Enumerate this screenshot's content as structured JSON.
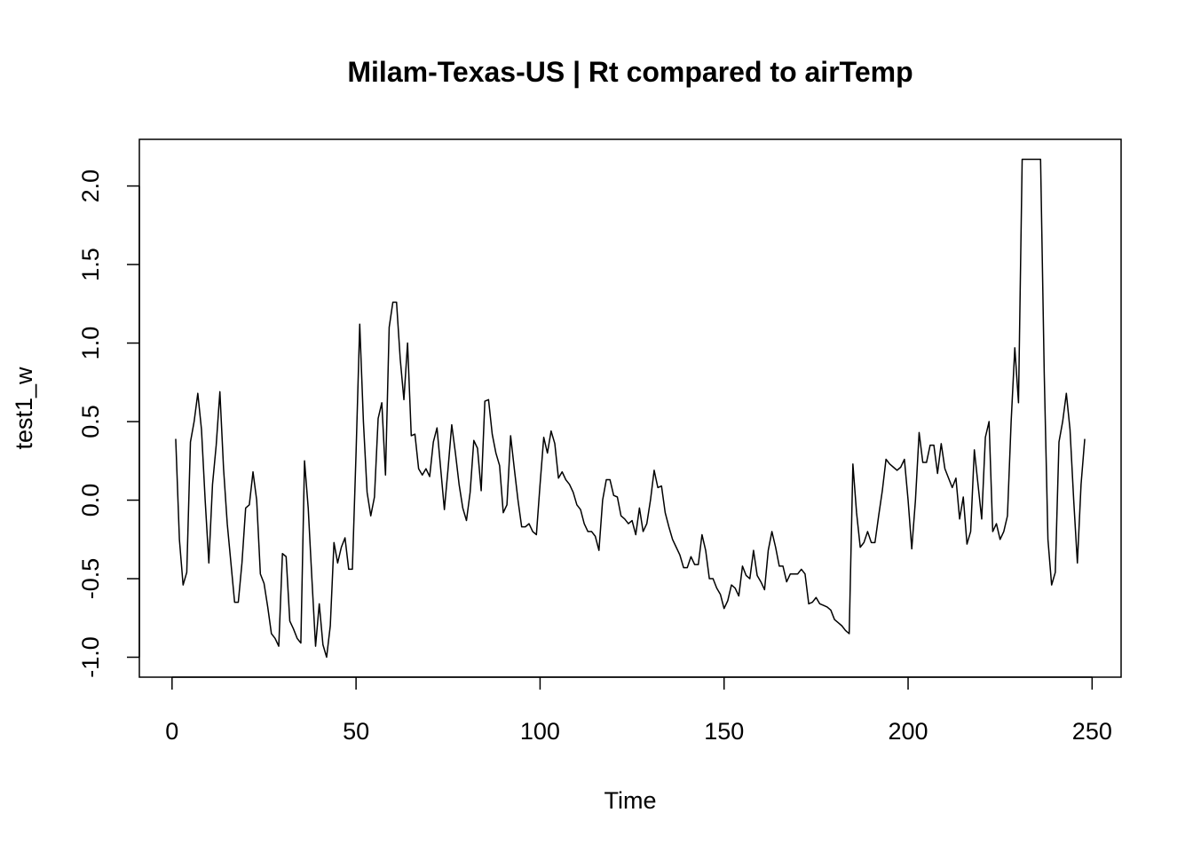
{
  "chart_data": {
    "type": "line",
    "title": "Milam-Texas-US | Rt compared to airTemp",
    "x_label": "Time",
    "y_label": "test1_w",
    "color": "#000000",
    "xlim": [
      -8.88,
      257.88
    ],
    "ylim": [
      -1.127,
      2.297
    ],
    "xticks": [
      0,
      50,
      100,
      150,
      200,
      250
    ],
    "yticks": [
      {
        "value": -1,
        "label": "-1.0"
      },
      -0.5,
      {
        "value": 0,
        "label": "0.0"
      },
      0.5,
      {
        "value": 1,
        "label": "1.0"
      },
      1.5,
      {
        "value": 2,
        "label": "2.0"
      }
    ],
    "x": [
      1,
      2,
      3,
      4,
      5,
      6,
      7,
      8,
      9,
      10,
      11,
      12,
      13,
      14,
      15,
      16,
      17,
      18,
      19,
      20,
      21,
      22,
      23,
      24,
      25,
      26,
      27,
      28,
      29,
      30,
      31,
      32,
      33,
      34,
      35,
      36,
      37,
      38,
      39,
      40,
      41,
      42,
      43,
      44,
      45,
      46,
      47,
      48,
      49,
      50,
      51,
      52,
      53,
      54,
      55,
      56,
      57,
      58,
      59,
      60,
      61,
      62,
      63,
      64,
      65,
      66,
      67,
      68,
      69,
      70,
      71,
      72,
      73,
      74,
      75,
      76,
      77,
      78,
      79,
      80,
      81,
      82,
      83,
      84,
      85,
      86,
      87,
      88,
      89,
      90,
      91,
      92,
      93,
      94,
      95,
      96,
      97,
      98,
      99,
      100,
      101,
      102,
      103,
      104,
      105,
      106,
      107,
      108,
      109,
      110,
      111,
      112,
      113,
      114,
      115,
      116,
      117,
      118,
      119,
      120,
      121,
      122,
      123,
      124,
      125,
      126,
      127,
      128,
      129,
      130,
      131,
      132,
      133,
      134,
      135,
      136,
      137,
      138,
      139,
      140,
      141,
      142,
      143,
      144,
      145,
      146,
      147,
      148,
      149,
      150,
      151,
      152,
      153,
      154,
      155,
      156,
      157,
      158,
      159,
      160,
      161,
      162,
      163,
      164,
      165,
      166,
      167,
      168,
      169,
      170,
      171,
      172,
      173,
      174,
      175,
      176,
      177,
      178,
      179,
      180,
      181,
      182,
      183,
      184,
      185,
      186,
      187,
      188,
      189,
      190,
      191,
      192,
      193,
      194,
      195,
      196,
      197,
      198,
      199,
      200,
      201,
      202,
      203,
      204,
      205,
      206,
      207,
      208,
      209,
      210,
      211,
      212,
      213,
      214,
      215,
      216,
      217,
      218,
      219,
      220,
      221,
      222,
      223,
      224,
      225,
      226,
      227,
      228,
      229,
      230,
      231,
      232,
      233,
      234,
      235,
      236,
      237,
      238,
      239,
      240,
      241,
      242,
      243,
      244,
      245,
      246,
      247,
      248
    ],
    "values": [
      0.39,
      -0.25,
      -0.54,
      -0.46,
      0.37,
      0.5,
      0.68,
      0.45,
      0.0,
      -0.4,
      0.1,
      0.35,
      0.69,
      0.2,
      -0.15,
      -0.4,
      -0.65,
      -0.65,
      -0.4,
      -0.05,
      -0.03,
      0.18,
      0.0,
      -0.47,
      -0.53,
      -0.68,
      -0.85,
      -0.88,
      -0.93,
      -0.34,
      -0.36,
      -0.77,
      -0.82,
      -0.88,
      -0.91,
      0.25,
      -0.05,
      -0.5,
      -0.93,
      -0.66,
      -0.92,
      -1.0,
      -0.8,
      -0.27,
      -0.4,
      -0.3,
      -0.24,
      -0.44,
      -0.44,
      0.3,
      1.12,
      0.5,
      0.05,
      -0.1,
      0.02,
      0.52,
      0.62,
      0.16,
      1.1,
      1.26,
      1.26,
      0.9,
      0.64,
      1.0,
      0.41,
      0.42,
      0.2,
      0.16,
      0.2,
      0.15,
      0.37,
      0.46,
      0.2,
      -0.06,
      0.2,
      0.48,
      0.3,
      0.1,
      -0.05,
      -0.13,
      0.05,
      0.38,
      0.33,
      0.06,
      0.63,
      0.64,
      0.42,
      0.3,
      0.22,
      -0.08,
      -0.03,
      0.41,
      0.2,
      0.0,
      -0.17,
      -0.17,
      -0.15,
      -0.2,
      -0.22,
      0.1,
      0.4,
      0.3,
      0.44,
      0.36,
      0.14,
      0.18,
      0.13,
      0.1,
      0.05,
      -0.03,
      -0.06,
      -0.15,
      -0.2,
      -0.2,
      -0.23,
      -0.32,
      0.0,
      0.13,
      0.13,
      0.03,
      0.02,
      -0.1,
      -0.12,
      -0.15,
      -0.13,
      -0.22,
      -0.05,
      -0.2,
      -0.15,
      0.0,
      0.19,
      0.08,
      0.09,
      -0.08,
      -0.17,
      -0.25,
      -0.3,
      -0.35,
      -0.43,
      -0.43,
      -0.36,
      -0.41,
      -0.41,
      -0.22,
      -0.32,
      -0.5,
      -0.5,
      -0.56,
      -0.6,
      -0.69,
      -0.64,
      -0.54,
      -0.56,
      -0.61,
      -0.42,
      -0.48,
      -0.5,
      -0.32,
      -0.48,
      -0.52,
      -0.57,
      -0.32,
      -0.2,
      -0.3,
      -0.42,
      -0.42,
      -0.52,
      -0.47,
      -0.47,
      -0.47,
      -0.44,
      -0.47,
      -0.66,
      -0.65,
      -0.62,
      -0.66,
      -0.67,
      -0.68,
      -0.7,
      -0.76,
      -0.78,
      -0.8,
      -0.83,
      -0.85,
      0.23,
      -0.08,
      -0.3,
      -0.27,
      -0.2,
      -0.27,
      -0.27,
      -0.1,
      0.06,
      0.26,
      0.23,
      0.21,
      0.19,
      0.21,
      0.26,
      0.0,
      -0.31,
      0.0,
      0.43,
      0.24,
      0.24,
      0.35,
      0.35,
      0.17,
      0.36,
      0.2,
      0.14,
      0.08,
      0.14,
      -0.12,
      0.02,
      -0.28,
      -0.2,
      0.32,
      0.1,
      -0.12,
      0.4,
      0.5,
      -0.2,
      -0.15,
      -0.25,
      -0.2,
      -0.1,
      0.5,
      0.97,
      0.62,
      2.17,
      2.17,
      2.17,
      2.17,
      2.17,
      2.17,
      0.8,
      -0.25,
      -0.54,
      -0.46,
      0.37,
      0.5,
      0.68,
      0.45,
      0.0,
      -0.4,
      0.1,
      0.39
    ]
  }
}
